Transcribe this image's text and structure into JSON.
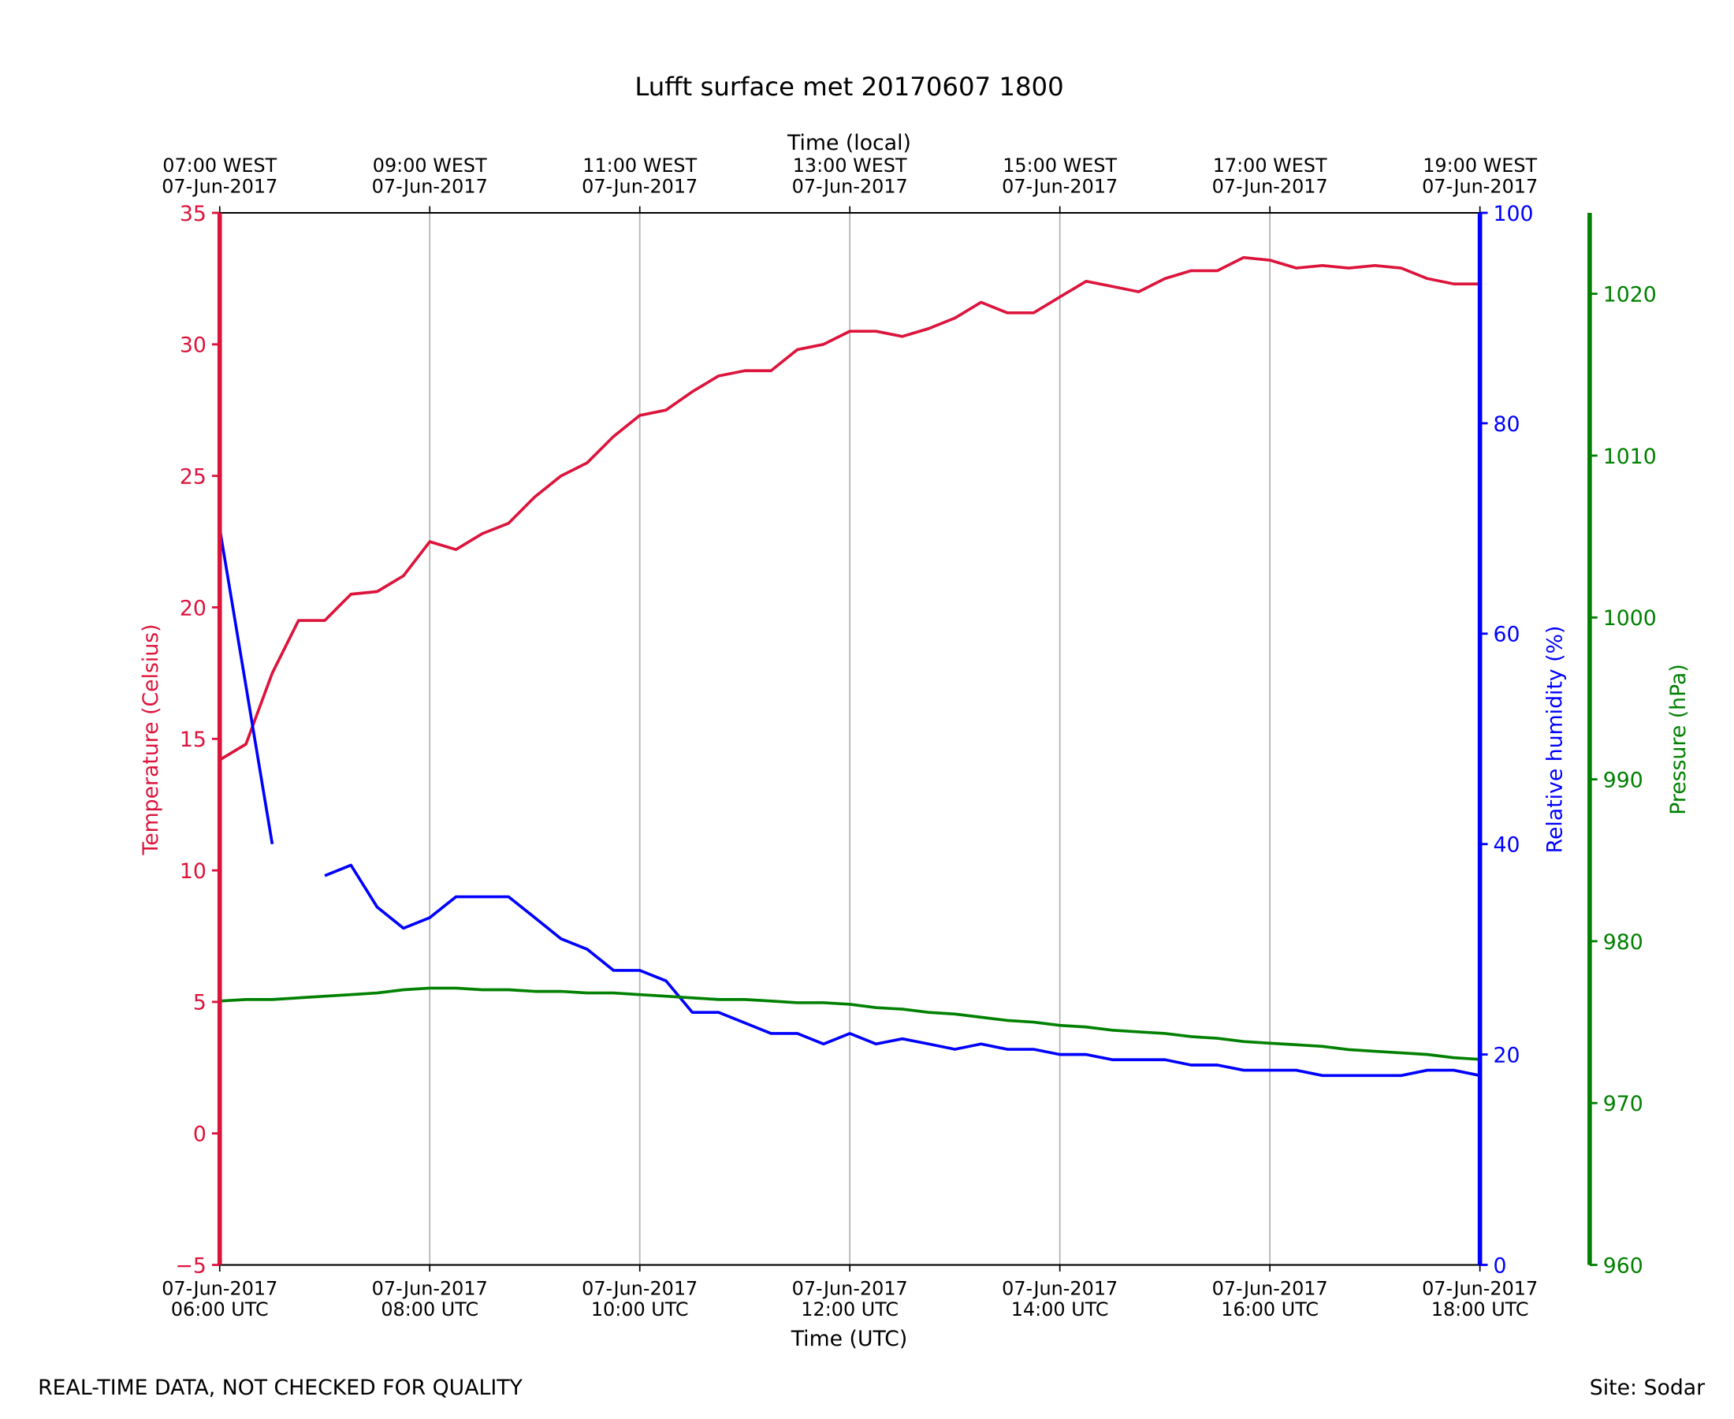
{
  "chart_data": {
    "type": "line",
    "title": "Lufft surface met 20170607 1800",
    "x_label": "Time (UTC)",
    "x2_label": "Time (local)",
    "y_label": "Temperature (Celsius)",
    "y2_label": "Relative humidity (%)",
    "y3_label": "Pressure (hPa)",
    "footer_left": "REAL-TIME DATA, NOT CHECKED FOR QUALITY",
    "footer_right": "Site: Sodar",
    "grid": true,
    "xlim": [
      6,
      18
    ],
    "xticks": [
      {
        "value": 6,
        "label": "07-Jun-2017\n06:00 UTC"
      },
      {
        "value": 8,
        "label": "07-Jun-2017\n08:00 UTC"
      },
      {
        "value": 10,
        "label": "07-Jun-2017\n10:00 UTC"
      },
      {
        "value": 12,
        "label": "07-Jun-2017\n12:00 UTC"
      },
      {
        "value": 14,
        "label": "07-Jun-2017\n14:00 UTC"
      },
      {
        "value": 16,
        "label": "07-Jun-2017\n16:00 UTC"
      },
      {
        "value": 18,
        "label": "07-Jun-2017\n18:00 UTC"
      }
    ],
    "x2ticks": [
      {
        "value": 6,
        "label": "07:00 WEST\n07-Jun-2017"
      },
      {
        "value": 8,
        "label": "09:00 WEST\n07-Jun-2017"
      },
      {
        "value": 10,
        "label": "11:00 WEST\n07-Jun-2017"
      },
      {
        "value": 12,
        "label": "13:00 WEST\n07-Jun-2017"
      },
      {
        "value": 14,
        "label": "15:00 WEST\n07-Jun-2017"
      },
      {
        "value": 16,
        "label": "17:00 WEST\n07-Jun-2017"
      },
      {
        "value": 18,
        "label": "19:00 WEST\n07-Jun-2017"
      }
    ],
    "ylim": [
      -5,
      35
    ],
    "yticks": [
      {
        "value": -5,
        "label": "−5"
      },
      0,
      5,
      10,
      15,
      20,
      25,
      30,
      35
    ],
    "y2lim": [
      0,
      100
    ],
    "y2ticks": [
      0,
      20,
      40,
      60,
      80,
      100
    ],
    "y3lim": [
      960,
      1025
    ],
    "y3ticks": [
      960,
      970,
      980,
      990,
      1000,
      1010,
      1020
    ],
    "x": [
      6,
      6.25,
      6.5,
      6.75,
      7,
      7.25,
      7.5,
      7.75,
      8,
      8.25,
      8.5,
      8.75,
      9,
      9.25,
      9.5,
      9.75,
      10,
      10.25,
      10.5,
      10.75,
      11,
      11.25,
      11.5,
      11.75,
      12,
      12.25,
      12.5,
      12.75,
      13,
      13.25,
      13.5,
      13.75,
      14,
      14.25,
      14.5,
      14.75,
      15,
      15.25,
      15.5,
      15.75,
      16,
      16.25,
      16.5,
      16.75,
      17,
      17.25,
      17.5,
      17.75,
      18
    ],
    "series": [
      {
        "name": "Temperature",
        "color": "#dc143c",
        "axis": "y",
        "values": [
          14.2,
          14.8,
          17.5,
          19.5,
          19.5,
          20.5,
          20.6,
          21.2,
          22.5,
          22.2,
          22.8,
          23.2,
          24.2,
          25.0,
          25.5,
          26.5,
          27.3,
          27.5,
          28.2,
          28.8,
          29.0,
          29.0,
          29.8,
          30.0,
          30.5,
          30.5,
          30.3,
          30.6,
          31.0,
          31.6,
          31.2,
          31.2,
          31.8,
          32.4,
          32.2,
          32.0,
          32.5,
          32.8,
          32.8,
          33.3,
          33.2,
          32.9,
          33.0,
          32.9,
          33.0,
          32.9,
          32.5,
          32.3,
          32.3
        ]
      },
      {
        "name": "Relative humidity",
        "color": "#0000ff",
        "axis": "y2",
        "values": [
          70,
          55,
          40,
          null,
          37,
          38,
          34,
          32,
          33,
          35,
          35,
          35,
          33,
          31,
          30,
          28,
          28,
          27,
          24,
          24,
          23,
          22,
          22,
          21,
          22,
          21,
          21.5,
          21,
          20.5,
          21,
          20.5,
          20.5,
          20,
          20,
          19.5,
          19.5,
          19.5,
          19,
          19,
          18.5,
          18.5,
          18.5,
          18,
          18,
          18,
          18,
          18.5,
          18.5,
          18
        ]
      },
      {
        "name": "Pressure",
        "color": "#008000",
        "axis": "y3",
        "values": [
          976.3,
          976.4,
          976.4,
          976.5,
          976.6,
          976.7,
          976.8,
          977.0,
          977.1,
          977.1,
          977.0,
          977.0,
          976.9,
          976.9,
          976.8,
          976.8,
          976.7,
          976.6,
          976.5,
          976.4,
          976.4,
          976.3,
          976.2,
          976.2,
          976.1,
          975.9,
          975.8,
          975.6,
          975.5,
          975.3,
          975.1,
          975.0,
          974.8,
          974.7,
          974.5,
          974.4,
          974.3,
          974.1,
          974.0,
          973.8,
          973.7,
          973.6,
          973.5,
          973.3,
          973.2,
          973.1,
          973.0,
          972.8,
          972.7
        ]
      }
    ]
  }
}
